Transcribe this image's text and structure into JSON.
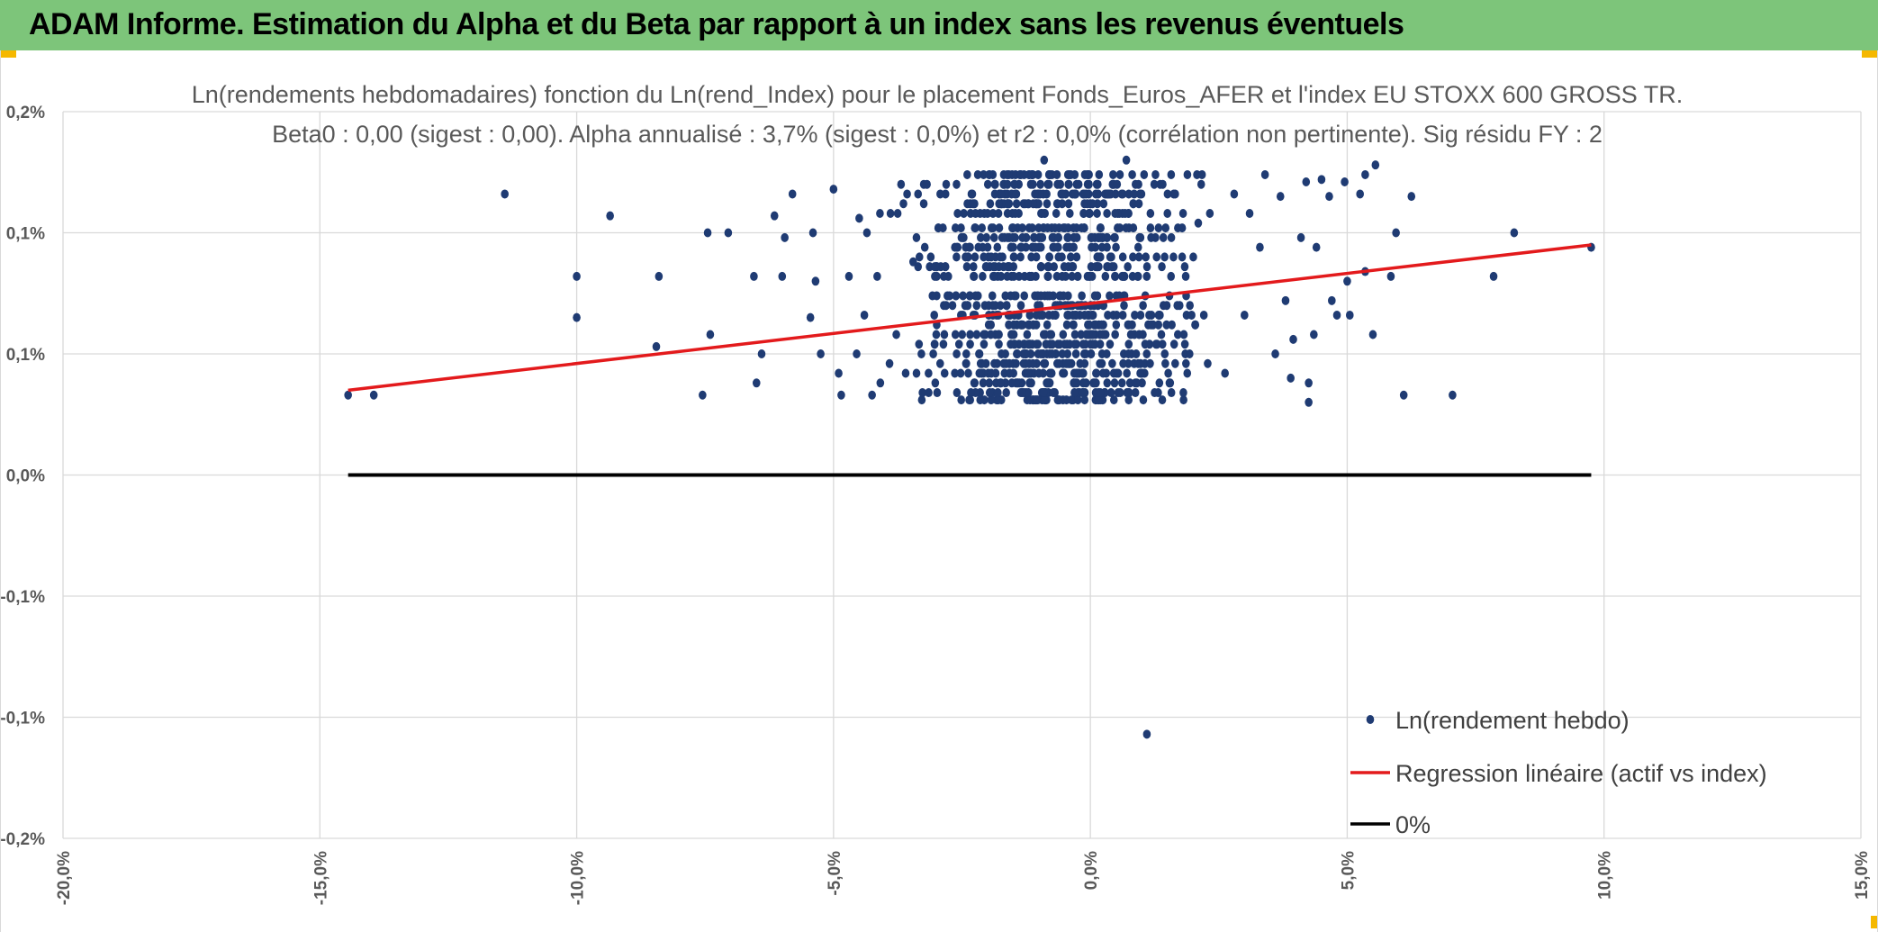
{
  "header": {
    "title": "ADAM Informe. Estimation du Alpha et du Beta par rapport à un index sans les revenus éventuels"
  },
  "colors": {
    "header_bg": "#7dc57a",
    "accent": "#f5b800",
    "scatter": "#1f3b73",
    "regression": "#e31a1c",
    "zero_line": "#000000",
    "grid": "#d9d9d9"
  },
  "chart_data": {
    "type": "scatter",
    "title": [
      "Ln(rendements hebdomadaires) fonction du Ln(rend_Index) pour le placement Fonds_Euros_AFER et l'index EU STOXX 600 GROSS TR.",
      "Beta0 : 0,00 (sigest : 0,00). Alpha annualisé : 3,7% (sigest : 0,0%) et r2 : 0,0% (corrélation non pertinente). Sig résidu FY : 2"
    ],
    "xlabel": "",
    "ylabel": "",
    "xlim": [
      -0.2,
      0.15
    ],
    "ylim": [
      -0.0015,
      0.0015
    ],
    "x_ticks": [
      {
        "value": -0.2,
        "label": "-20,0%"
      },
      {
        "value": -0.15,
        "label": "-15,0%"
      },
      {
        "value": -0.1,
        "label": "-10,0%"
      },
      {
        "value": -0.05,
        "label": "-5,0%"
      },
      {
        "value": 0.0,
        "label": "0,0%"
      },
      {
        "value": 0.05,
        "label": "5,0%"
      },
      {
        "value": 0.1,
        "label": "10,0%"
      },
      {
        "value": 0.15,
        "label": "15,0%"
      }
    ],
    "y_ticks": [
      {
        "value": 0.0015,
        "label": "0,2%"
      },
      {
        "value": 0.001,
        "label": "0,1%"
      },
      {
        "value": 0.0005,
        "label": "0,1%"
      },
      {
        "value": 0.0,
        "label": "0,0%"
      },
      {
        "value": -0.0005,
        "label": "-0,1%"
      },
      {
        "value": -0.001,
        "label": "-0,1%"
      },
      {
        "value": -0.0015,
        "label": "-0,2%"
      }
    ],
    "series": [
      {
        "name": "Ln(rendement hebdo)",
        "kind": "scatter",
        "points": [
          [
            -0.1445,
            0.00033
          ],
          [
            -0.1395,
            0.00033
          ],
          [
            -0.114,
            0.00116
          ],
          [
            -0.1,
            0.00082
          ],
          [
            -0.1,
            0.00065
          ],
          [
            -0.0935,
            0.00107
          ],
          [
            -0.084,
            0.00082
          ],
          [
            -0.0845,
            0.00053
          ],
          [
            -0.0755,
            0.00033
          ],
          [
            -0.0745,
            0.001
          ],
          [
            -0.0705,
            0.001
          ],
          [
            -0.074,
            0.00058
          ],
          [
            -0.0655,
            0.00082
          ],
          [
            -0.065,
            0.00038
          ],
          [
            -0.064,
            0.0005
          ],
          [
            -0.0615,
            0.00107
          ],
          [
            -0.06,
            0.00082
          ],
          [
            -0.0595,
            0.00098
          ],
          [
            -0.058,
            0.00116
          ],
          [
            -0.054,
            0.001
          ],
          [
            -0.0545,
            0.00065
          ],
          [
            -0.0535,
            0.0008
          ],
          [
            -0.0525,
            0.0005
          ],
          [
            -0.05,
            0.00118
          ],
          [
            -0.049,
            0.00042
          ],
          [
            -0.0485,
            0.00033
          ],
          [
            -0.047,
            0.00082
          ],
          [
            -0.0455,
            0.0005
          ],
          [
            -0.045,
            0.00106
          ],
          [
            -0.0435,
            0.001
          ],
          [
            -0.044,
            0.00066
          ],
          [
            -0.0425,
            0.00033
          ],
          [
            -0.0415,
            0.00082
          ],
          [
            -0.0345,
            0.00088
          ],
          [
            0.015,
            0.00108
          ],
          [
            0.021,
            0.00104
          ],
          [
            0.03,
            0.00066
          ],
          [
            0.031,
            0.00108
          ],
          [
            0.033,
            0.00094
          ],
          [
            0.034,
            0.00124
          ],
          [
            0.036,
            0.0005
          ],
          [
            0.037,
            0.00115
          ],
          [
            0.038,
            0.00072
          ],
          [
            0.039,
            0.0004
          ],
          [
            0.0395,
            0.00056
          ],
          [
            0.041,
            0.00098
          ],
          [
            0.042,
            0.00121
          ],
          [
            0.0425,
            0.00038
          ],
          [
            0.0425,
            0.0003
          ],
          [
            0.0435,
            0.00058
          ],
          [
            0.044,
            0.00094
          ],
          [
            0.045,
            0.00122
          ],
          [
            0.0465,
            0.00115
          ],
          [
            0.047,
            0.00072
          ],
          [
            0.048,
            0.00066
          ],
          [
            0.0495,
            0.00121
          ],
          [
            0.05,
            0.0008
          ],
          [
            0.0505,
            0.00066
          ],
          [
            0.0525,
            0.00116
          ],
          [
            0.0535,
            0.00124
          ],
          [
            0.0535,
            0.00084
          ],
          [
            0.055,
            0.00058
          ],
          [
            0.0555,
            0.00128
          ],
          [
            0.0585,
            0.00082
          ],
          [
            0.0595,
            0.001
          ],
          [
            0.061,
            0.00033
          ],
          [
            0.0625,
            0.00115
          ],
          [
            0.0705,
            0.00033
          ],
          [
            0.0785,
            0.00082
          ],
          [
            0.0825,
            0.001
          ],
          [
            0.0975,
            0.00094
          ],
          [
            -0.009,
            0.0013
          ],
          [
            0.007,
            0.0013
          ],
          [
            0.011,
            -0.00107
          ]
        ],
        "dense_cluster": {
          "x_range": [
            -0.045,
            0.031
          ],
          "y_range": [
            0.00031,
            0.00124
          ],
          "y_levels": [
            0.00031,
            0.00034,
            0.00038,
            0.00042,
            0.00046,
            0.0005,
            0.00054,
            0.00058,
            0.00062,
            0.00066,
            0.0007,
            0.00074,
            0.00082,
            0.00086,
            0.0009,
            0.00094,
            0.00098,
            0.00102,
            0.00108,
            0.00112,
            0.00116,
            0.0012,
            0.00124
          ]
        }
      },
      {
        "name": "Regression linéaire (actif vs index)",
        "kind": "line",
        "points": [
          [
            -0.1445,
            0.00035
          ],
          [
            0.0975,
            0.00095
          ]
        ]
      },
      {
        "name": "0%",
        "kind": "line",
        "points": [
          [
            -0.1445,
            0.0
          ],
          [
            0.0975,
            0.0
          ]
        ]
      }
    ],
    "legend": {
      "position": "bottom-right",
      "entries": [
        "Ln(rendement hebdo)",
        "Regression linéaire (actif vs index)",
        "0%"
      ]
    },
    "grid": true
  }
}
